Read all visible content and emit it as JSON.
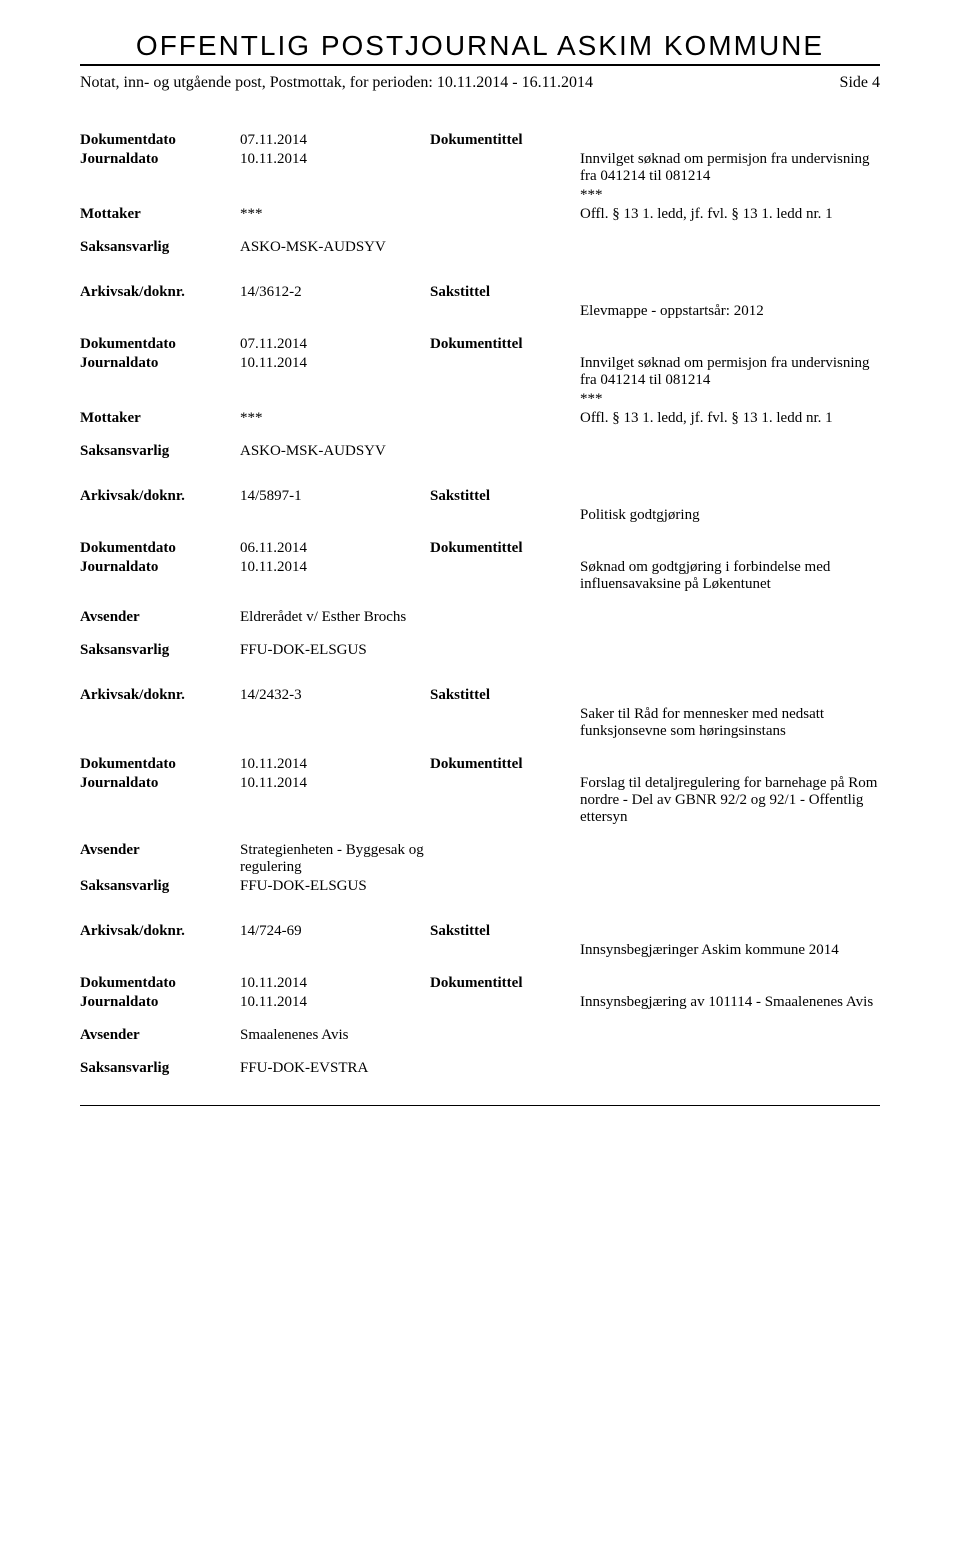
{
  "header_title": "OFFENTLIG POSTJOURNAL ASKIM KOMMUNE",
  "sub_left": "Notat, inn- og utgående post, Postmottak, for perioden: 10.11.2014 - 16.11.2014",
  "sub_right": "Side 4",
  "labels": {
    "arkiv": "Arkivsak/doknr.",
    "sakstittel": "Sakstittel",
    "dokdato": "Dokumentdato",
    "dokumentittel": "Dokumentittel",
    "journaldato": "Journaldato",
    "mottaker": "Mottaker",
    "avsender": "Avsender",
    "saksansvarlig": "Saksansvarlig"
  },
  "entries": [
    {
      "dokdato": "07.11.2014",
      "journaldato": "10.11.2014",
      "doktext": "Innvilget søknad om permisjon fra undervisning fra 041214 til 081214",
      "mottaker_left": "***",
      "mottaker_right": "***",
      "offl": "Offl. § 13 1. ledd, jf. fvl. § 13 1. ledd nr. 1",
      "saksansvarlig": "ASKO-MSK-AUDSYV"
    },
    {
      "arkiv": "14/3612-2",
      "sakstext": "Elevmappe - oppstartsår: 2012",
      "dokdato": "07.11.2014",
      "journaldato": "10.11.2014",
      "doktext": "Innvilget søknad om permisjon fra undervisning fra 041214 til 081214",
      "mottaker_left": "***",
      "mottaker_right": "***",
      "offl": "Offl. § 13 1. ledd, jf. fvl. § 13 1. ledd nr. 1",
      "saksansvarlig": "ASKO-MSK-AUDSYV"
    },
    {
      "arkiv": "14/5897-1",
      "sakstext": "Politisk godtgjøring",
      "dokdato": "06.11.2014",
      "journaldato": "10.11.2014",
      "doktext": "Søknad om godtgjøring i forbindelse med influensavaksine på Løkentunet",
      "avsender": "Eldrerådet v/ Esther Brochs",
      "saksansvarlig": "FFU-DOK-ELSGUS"
    },
    {
      "arkiv": "14/2432-3",
      "sakstext": "Saker til Råd for mennesker med nedsatt funksjonsevne som høringsinstans",
      "dokdato": "10.11.2014",
      "journaldato": "10.11.2014",
      "doktext": "Forslag til detaljregulering for barnehage på Rom nordre - Del av GBNR 92/2 og 92/1 - Offentlig ettersyn",
      "avsender": "Strategienheten - Byggesak og regulering",
      "saksansvarlig": "FFU-DOK-ELSGUS"
    },
    {
      "arkiv": "14/724-69",
      "sakstext": "Innsynsbegjæringer Askim kommune 2014",
      "dokdato": "10.11.2014",
      "journaldato": "10.11.2014",
      "doktext": "Innsynsbegjæring av 101114 - Smaalenenes Avis",
      "avsender": "Smaalenenes Avis",
      "saksansvarlig": "FFU-DOK-EVSTRA"
    }
  ]
}
